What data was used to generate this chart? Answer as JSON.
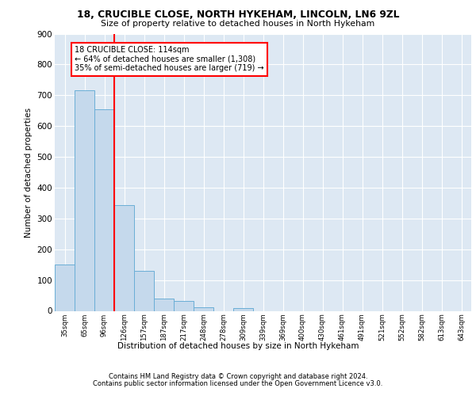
{
  "title1": "18, CRUCIBLE CLOSE, NORTH HYKEHAM, LINCOLN, LN6 9ZL",
  "title2": "Size of property relative to detached houses in North Hykeham",
  "xlabel": "Distribution of detached houses by size in North Hykeham",
  "ylabel": "Number of detached properties",
  "categories": [
    "35sqm",
    "65sqm",
    "96sqm",
    "126sqm",
    "157sqm",
    "187sqm",
    "217sqm",
    "248sqm",
    "278sqm",
    "309sqm",
    "339sqm",
    "369sqm",
    "400sqm",
    "430sqm",
    "461sqm",
    "491sqm",
    "521sqm",
    "552sqm",
    "582sqm",
    "613sqm",
    "643sqm"
  ],
  "values": [
    150,
    715,
    655,
    343,
    130,
    40,
    32,
    12,
    0,
    9,
    0,
    0,
    0,
    0,
    0,
    0,
    0,
    0,
    0,
    0,
    0
  ],
  "bar_color": "#c5d9ec",
  "bar_edge_color": "#6aaed6",
  "vline_x": 2.5,
  "vline_color": "red",
  "annotation_line1": "18 CRUCIBLE CLOSE: 114sqm",
  "annotation_line2": "← 64% of detached houses are smaller (1,308)",
  "annotation_line3": "35% of semi-detached houses are larger (719) →",
  "annotation_box_edge_color": "red",
  "ylim": [
    0,
    900
  ],
  "yticks": [
    0,
    100,
    200,
    300,
    400,
    500,
    600,
    700,
    800,
    900
  ],
  "footer1": "Contains HM Land Registry data © Crown copyright and database right 2024.",
  "footer2": "Contains public sector information licensed under the Open Government Licence v3.0.",
  "plot_bg_color": "#dde8f3"
}
